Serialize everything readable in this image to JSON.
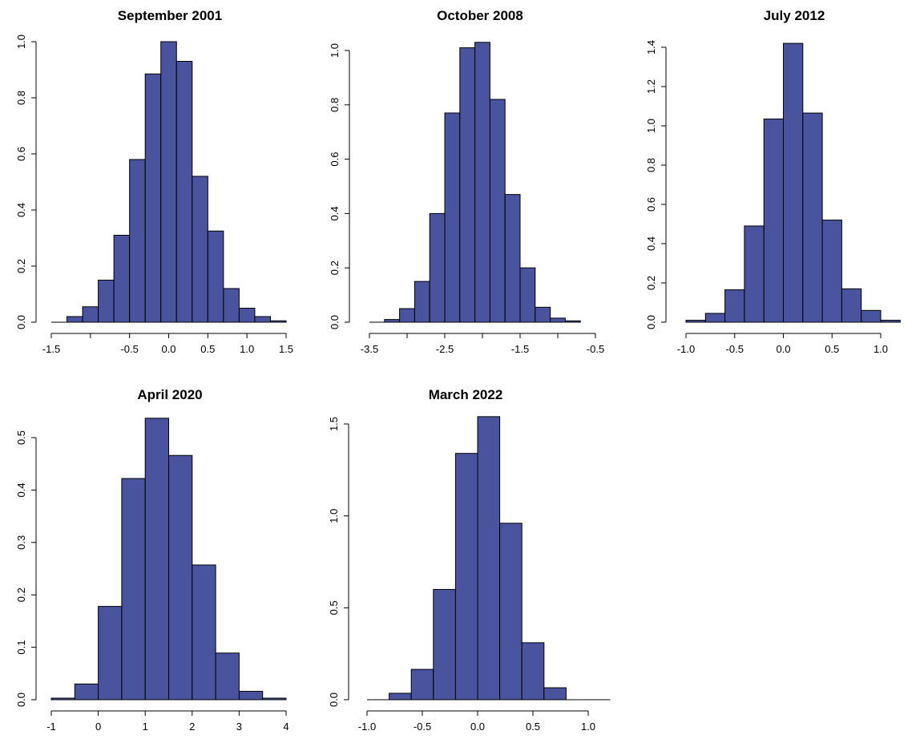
{
  "colors": {
    "bar_fill": "#4a539e",
    "bar_stroke": "#000000",
    "background": "#ffffff"
  },
  "chart_data": [
    {
      "type": "bar",
      "title": "September 2001",
      "xlabel": "",
      "ylabel": "",
      "xlim": [
        -1.5,
        1.5
      ],
      "ylim": [
        0,
        1.0
      ],
      "xticks": [
        -1.5,
        -1.0,
        -0.5,
        0.0,
        0.5,
        1.0,
        1.5
      ],
      "xtick_labels": [
        "-1.5",
        "",
        "-0.5",
        "0.0",
        "0.5",
        "1.0",
        "1.5"
      ],
      "yticks": [
        0.0,
        0.2,
        0.4,
        0.6,
        0.8,
        1.0
      ],
      "ytick_labels": [
        "0.0",
        "0.2",
        "0.4",
        "0.6",
        "0.8",
        "1.0"
      ],
      "bin_edges": [
        -1.5,
        -1.3,
        -1.1,
        -0.9,
        -0.7,
        -0.5,
        -0.3,
        -0.1,
        0.1,
        0.3,
        0.5,
        0.7,
        0.9,
        1.1,
        1.3,
        1.5
      ],
      "values": [
        0.0,
        0.02,
        0.055,
        0.15,
        0.31,
        0.58,
        0.885,
        1.0,
        0.93,
        0.52,
        0.325,
        0.12,
        0.05,
        0.02,
        0.005
      ],
      "grid": false,
      "legend": "none"
    },
    {
      "type": "bar",
      "title": "October 2008",
      "xlabel": "",
      "ylabel": "",
      "xlim": [
        -3.5,
        -0.5
      ],
      "ylim": [
        0,
        1.0
      ],
      "xticks": [
        -3.5,
        -3.0,
        -2.5,
        -2.0,
        -1.5,
        -1.0,
        -0.5
      ],
      "xtick_labels": [
        "-3.5",
        "",
        "-2.5",
        "",
        "-1.5",
        "",
        "-0.5"
      ],
      "yticks": [
        0.0,
        0.2,
        0.4,
        0.6,
        0.8,
        1.0
      ],
      "ytick_labels": [
        "0.0",
        "0.2",
        "0.4",
        "0.6",
        "0.8",
        "1.0"
      ],
      "bin_edges": [
        -3.5,
        -3.3,
        -3.1,
        -2.9,
        -2.7,
        -2.5,
        -2.3,
        -2.1,
        -1.9,
        -1.7,
        -1.5,
        -1.3,
        -1.1,
        -0.9,
        -0.7
      ],
      "values": [
        0.0,
        0.01,
        0.05,
        0.15,
        0.4,
        0.77,
        1.01,
        1.03,
        0.82,
        0.47,
        0.2,
        0.055,
        0.015,
        0.005
      ],
      "grid": false,
      "legend": "none"
    },
    {
      "type": "bar",
      "title": "July 2012",
      "xlabel": "",
      "ylabel": "",
      "xlim": [
        -1.0,
        1.0
      ],
      "ylim": [
        0,
        1.4
      ],
      "xticks": [
        -1.0,
        -0.5,
        0.0,
        0.5,
        1.0
      ],
      "xtick_labels": [
        "-1.0",
        "-0.5",
        "0.0",
        "0.5",
        "1.0"
      ],
      "yticks": [
        0.0,
        0.2,
        0.4,
        0.6,
        0.8,
        1.0,
        1.2,
        1.4
      ],
      "ytick_labels": [
        "0.0",
        "0.2",
        "0.4",
        "0.6",
        "0.8",
        "1.0",
        "1.2",
        "1.4"
      ],
      "bin_edges": [
        -1.0,
        -0.8,
        -0.6,
        -0.4,
        -0.2,
        0.0,
        0.2,
        0.4,
        0.6,
        0.8,
        1.0,
        1.2
      ],
      "values": [
        0.01,
        0.045,
        0.165,
        0.49,
        1.035,
        1.42,
        1.065,
        0.52,
        0.17,
        0.06,
        0.01
      ],
      "grid": false,
      "legend": "none"
    },
    {
      "type": "bar",
      "title": "April 2020",
      "xlabel": "",
      "ylabel": "",
      "xlim": [
        -1,
        4
      ],
      "ylim": [
        0,
        0.5
      ],
      "xticks": [
        -1,
        0,
        1,
        2,
        3,
        4
      ],
      "xtick_labels": [
        "-1",
        "0",
        "1",
        "2",
        "3",
        "4"
      ],
      "yticks": [
        0.0,
        0.1,
        0.2,
        0.3,
        0.4,
        0.5
      ],
      "ytick_labels": [
        "0.0",
        "0.1",
        "0.2",
        "0.3",
        "0.4",
        "0.5"
      ],
      "bin_edges": [
        -1.0,
        -0.5,
        0.0,
        0.5,
        1.0,
        1.5,
        2.0,
        2.5,
        3.0,
        3.5,
        4.0
      ],
      "values": [
        0.003,
        0.03,
        0.178,
        0.422,
        0.537,
        0.466,
        0.257,
        0.089,
        0.016,
        0.003
      ],
      "grid": false,
      "legend": "none"
    },
    {
      "type": "bar",
      "title": "March 2022",
      "xlabel": "",
      "ylabel": "",
      "xlim": [
        -1.0,
        1.0
      ],
      "ylim": [
        0,
        1.5
      ],
      "xticks": [
        -1.0,
        -0.5,
        0.0,
        0.5,
        1.0
      ],
      "xtick_labels": [
        "-1.0",
        "-0.5",
        "0.0",
        "0.5",
        "1.0"
      ],
      "yticks": [
        0.0,
        0.5,
        1.0,
        1.5
      ],
      "ytick_labels": [
        "0.0",
        "0.5",
        "1.0",
        "1.5"
      ],
      "bin_edges": [
        -1.0,
        -0.8,
        -0.6,
        -0.4,
        -0.2,
        0.0,
        0.2,
        0.4,
        0.6,
        0.8,
        1.0,
        1.2
      ],
      "values": [
        0.0,
        0.035,
        0.165,
        0.6,
        1.34,
        1.54,
        0.96,
        0.31,
        0.065,
        0.0,
        0.0
      ],
      "grid": false,
      "legend": "none"
    }
  ]
}
